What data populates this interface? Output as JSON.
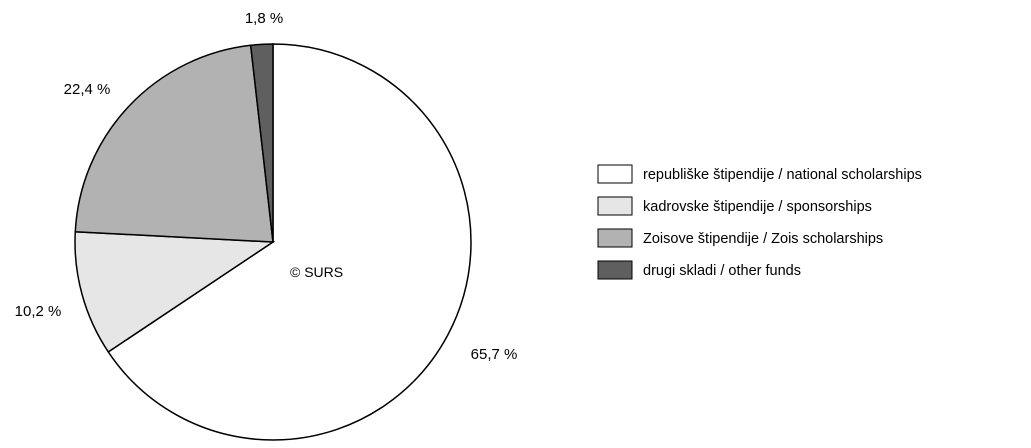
{
  "chart_data": {
    "type": "pie",
    "title": "",
    "watermark": "© SURS",
    "start": "top, clockwise",
    "slices": [
      {
        "label": "republiške štipendije / national scholarships",
        "value": 65.7,
        "value_label": "65,7 %",
        "color": "#ffffff"
      },
      {
        "label": "kadrovske štipendije / sponsorships",
        "value": 10.2,
        "value_label": "10,2 %",
        "color": "#e6e6e6"
      },
      {
        "label": "Zoisove štipendije / Zois scholarships",
        "value": 22.4,
        "value_label": "22,4 %",
        "color": "#b2b2b2"
      },
      {
        "label": "drugi skladi / other funds",
        "value": 1.8,
        "value_label": "1,8 %",
        "color": "#5f5f5f"
      }
    ],
    "legend_placement": "right",
    "outline_color": "#000000"
  }
}
